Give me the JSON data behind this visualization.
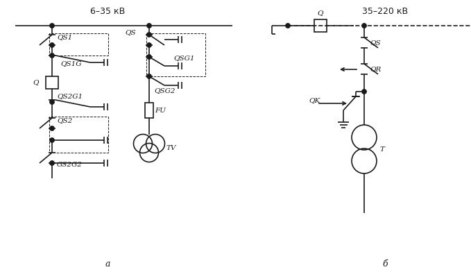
{
  "title_a": "6–35 кВ",
  "title_b": "35–220 кВ",
  "label_a": "а",
  "label_b": "б",
  "bg_color": "#ffffff",
  "line_color": "#1a1a1a",
  "dot_color": "#1a1a1a",
  "line_width": 1.2,
  "fig_width": 6.79,
  "fig_height": 3.92,
  "dpi": 100
}
